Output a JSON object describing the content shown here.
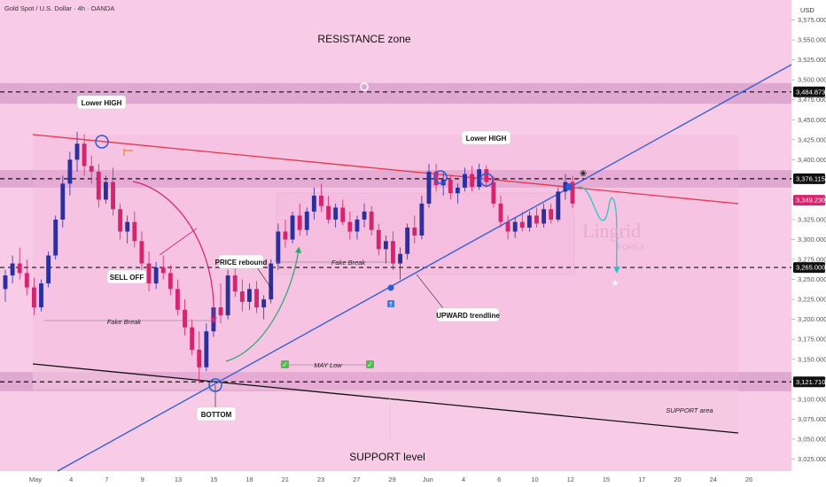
{
  "header": {
    "symbol_title": "Gold Spot / U.S. Dollar · 4h · OANDA",
    "currency": "USD"
  },
  "colors": {
    "bull": "#2b2fa0",
    "bear": "#d6246e",
    "trendline": "#2a5bd7",
    "resistance_line": "#e8354a",
    "support_line": "#111111",
    "zone": "#c98bc0",
    "arrow_sell": "#d6246e",
    "arrow_rebound": "#27a86a",
    "arrow_projection": "#2fc4c4"
  },
  "chart_data": {
    "type": "candlestick",
    "title": "",
    "y_axis": {
      "min": 3010,
      "max": 3600,
      "ticks": [
        3575,
        3550,
        3525,
        3500,
        3475,
        3450,
        3425,
        3400,
        3375,
        3350,
        3325,
        3300,
        3275,
        3250,
        3225,
        3200,
        3175,
        3150,
        3125,
        3100,
        3075,
        3050,
        3025
      ],
      "tick_labels": [
        "3,575.000",
        "3,550.000",
        "3,525.000",
        "3,500.000",
        "3,475.000",
        "3,450.000",
        "3,425.000",
        "3,400.000",
        "3,375.000",
        "3,350.000",
        "3,325.000",
        "3,300.000",
        "3,275.000",
        "3,250.000",
        "3,225.000",
        "3,200.000",
        "3,175.000",
        "3,150.000",
        "3,125.000",
        "3,100.000",
        "3,075.000",
        "3,050.000",
        "3,025.000"
      ],
      "position": "right"
    },
    "x_axis": {
      "labels": [
        "May",
        "4",
        "7",
        "9",
        "13",
        "15",
        "18",
        "21",
        "23",
        "27",
        "29",
        "Jun",
        "4",
        "6",
        "10",
        "12",
        "15",
        "17",
        "20",
        "24",
        "26"
      ]
    },
    "price_tags": [
      {
        "value": 3484.873,
        "label": "3,484.873",
        "color": "#111111"
      },
      {
        "value": 3376.115,
        "label": "3,376.115",
        "color": "#111111"
      },
      {
        "value": 3349.23,
        "label": "3,349.230",
        "color": "#d6246e"
      },
      {
        "value": 3265.0,
        "label": "3,265.000",
        "color": "#111111"
      },
      {
        "value": 3121.71,
        "label": "3,121.710",
        "color": "#111111"
      }
    ],
    "horizontal_levels": [
      3484.873,
      3376.115,
      3265.0,
      3121.71
    ],
    "zones": [
      {
        "name": "resistance-band",
        "from": 3470,
        "to": 3496
      },
      {
        "name": "mid-band",
        "from": 3365,
        "to": 3387
      },
      {
        "name": "support-band",
        "from": 3110,
        "to": 3134
      }
    ],
    "candles": [
      {
        "o": 3238,
        "h": 3262,
        "l": 3222,
        "c": 3255
      },
      {
        "o": 3255,
        "h": 3280,
        "l": 3245,
        "c": 3270
      },
      {
        "o": 3270,
        "h": 3290,
        "l": 3250,
        "c": 3258
      },
      {
        "o": 3258,
        "h": 3275,
        "l": 3230,
        "c": 3240
      },
      {
        "o": 3240,
        "h": 3252,
        "l": 3205,
        "c": 3215
      },
      {
        "o": 3215,
        "h": 3250,
        "l": 3210,
        "c": 3245
      },
      {
        "o": 3245,
        "h": 3285,
        "l": 3240,
        "c": 3280
      },
      {
        "o": 3280,
        "h": 3330,
        "l": 3275,
        "c": 3325
      },
      {
        "o": 3325,
        "h": 3380,
        "l": 3315,
        "c": 3370
      },
      {
        "o": 3370,
        "h": 3410,
        "l": 3355,
        "c": 3400
      },
      {
        "o": 3400,
        "h": 3435,
        "l": 3385,
        "c": 3420
      },
      {
        "o": 3420,
        "h": 3432,
        "l": 3380,
        "c": 3392
      },
      {
        "o": 3392,
        "h": 3405,
        "l": 3370,
        "c": 3385
      },
      {
        "o": 3385,
        "h": 3395,
        "l": 3340,
        "c": 3350
      },
      {
        "o": 3350,
        "h": 3380,
        "l": 3345,
        "c": 3372
      },
      {
        "o": 3372,
        "h": 3390,
        "l": 3330,
        "c": 3338
      },
      {
        "o": 3338,
        "h": 3345,
        "l": 3300,
        "c": 3310
      },
      {
        "o": 3310,
        "h": 3330,
        "l": 3295,
        "c": 3322
      },
      {
        "o": 3322,
        "h": 3335,
        "l": 3290,
        "c": 3298
      },
      {
        "o": 3298,
        "h": 3310,
        "l": 3262,
        "c": 3270
      },
      {
        "o": 3270,
        "h": 3285,
        "l": 3235,
        "c": 3245
      },
      {
        "o": 3245,
        "h": 3272,
        "l": 3238,
        "c": 3265
      },
      {
        "o": 3265,
        "h": 3280,
        "l": 3250,
        "c": 3258
      },
      {
        "o": 3258,
        "h": 3268,
        "l": 3230,
        "c": 3238
      },
      {
        "o": 3238,
        "h": 3250,
        "l": 3205,
        "c": 3212
      },
      {
        "o": 3212,
        "h": 3225,
        "l": 3180,
        "c": 3190
      },
      {
        "o": 3190,
        "h": 3200,
        "l": 3155,
        "c": 3162
      },
      {
        "o": 3162,
        "h": 3185,
        "l": 3120,
        "c": 3140
      },
      {
        "o": 3140,
        "h": 3195,
        "l": 3135,
        "c": 3185
      },
      {
        "o": 3185,
        "h": 3225,
        "l": 3178,
        "c": 3215
      },
      {
        "o": 3215,
        "h": 3245,
        "l": 3195,
        "c": 3205
      },
      {
        "o": 3205,
        "h": 3262,
        "l": 3200,
        "c": 3255
      },
      {
        "o": 3255,
        "h": 3265,
        "l": 3228,
        "c": 3235
      },
      {
        "o": 3235,
        "h": 3250,
        "l": 3210,
        "c": 3222
      },
      {
        "o": 3222,
        "h": 3245,
        "l": 3212,
        "c": 3238
      },
      {
        "o": 3238,
        "h": 3248,
        "l": 3208,
        "c": 3215
      },
      {
        "o": 3215,
        "h": 3230,
        "l": 3200,
        "c": 3225
      },
      {
        "o": 3225,
        "h": 3275,
        "l": 3220,
        "c": 3270
      },
      {
        "o": 3270,
        "h": 3320,
        "l": 3262,
        "c": 3310
      },
      {
        "o": 3310,
        "h": 3325,
        "l": 3290,
        "c": 3300
      },
      {
        "o": 3300,
        "h": 3335,
        "l": 3295,
        "c": 3330
      },
      {
        "o": 3330,
        "h": 3345,
        "l": 3305,
        "c": 3312
      },
      {
        "o": 3312,
        "h": 3340,
        "l": 3305,
        "c": 3335
      },
      {
        "o": 3335,
        "h": 3365,
        "l": 3325,
        "c": 3355
      },
      {
        "o": 3355,
        "h": 3370,
        "l": 3335,
        "c": 3342
      },
      {
        "o": 3342,
        "h": 3355,
        "l": 3320,
        "c": 3325
      },
      {
        "o": 3325,
        "h": 3345,
        "l": 3315,
        "c": 3340
      },
      {
        "o": 3340,
        "h": 3350,
        "l": 3318,
        "c": 3322
      },
      {
        "o": 3322,
        "h": 3335,
        "l": 3300,
        "c": 3310
      },
      {
        "o": 3310,
        "h": 3330,
        "l": 3300,
        "c": 3325
      },
      {
        "o": 3325,
        "h": 3345,
        "l": 3315,
        "c": 3335
      },
      {
        "o": 3335,
        "h": 3342,
        "l": 3305,
        "c": 3312
      },
      {
        "o": 3312,
        "h": 3320,
        "l": 3280,
        "c": 3288
      },
      {
        "o": 3288,
        "h": 3305,
        "l": 3270,
        "c": 3298
      },
      {
        "o": 3298,
        "h": 3310,
        "l": 3262,
        "c": 3270
      },
      {
        "o": 3270,
        "h": 3290,
        "l": 3250,
        "c": 3282
      },
      {
        "o": 3282,
        "h": 3320,
        "l": 3275,
        "c": 3315
      },
      {
        "o": 3315,
        "h": 3330,
        "l": 3295,
        "c": 3305
      },
      {
        "o": 3305,
        "h": 3355,
        "l": 3300,
        "c": 3345
      },
      {
        "o": 3345,
        "h": 3395,
        "l": 3340,
        "c": 3385
      },
      {
        "o": 3385,
        "h": 3395,
        "l": 3360,
        "c": 3368
      },
      {
        "o": 3368,
        "h": 3385,
        "l": 3355,
        "c": 3375
      },
      {
        "o": 3375,
        "h": 3380,
        "l": 3350,
        "c": 3358
      },
      {
        "o": 3358,
        "h": 3370,
        "l": 3345,
        "c": 3365
      },
      {
        "o": 3365,
        "h": 3390,
        "l": 3360,
        "c": 3382
      },
      {
        "o": 3382,
        "h": 3392,
        "l": 3360,
        "c": 3366
      },
      {
        "o": 3366,
        "h": 3395,
        "l": 3362,
        "c": 3388
      },
      {
        "o": 3388,
        "h": 3393,
        "l": 3365,
        "c": 3372
      },
      {
        "o": 3372,
        "h": 3380,
        "l": 3340,
        "c": 3345
      },
      {
        "o": 3345,
        "h": 3355,
        "l": 3315,
        "c": 3322
      },
      {
        "o": 3322,
        "h": 3330,
        "l": 3300,
        "c": 3310
      },
      {
        "o": 3310,
        "h": 3328,
        "l": 3302,
        "c": 3322
      },
      {
        "o": 3322,
        "h": 3335,
        "l": 3310,
        "c": 3315
      },
      {
        "o": 3315,
        "h": 3335,
        "l": 3310,
        "c": 3330
      },
      {
        "o": 3330,
        "h": 3340,
        "l": 3315,
        "c": 3320
      },
      {
        "o": 3320,
        "h": 3345,
        "l": 3315,
        "c": 3338
      },
      {
        "o": 3338,
        "h": 3345,
        "l": 3320,
        "c": 3325
      },
      {
        "o": 3325,
        "h": 3365,
        "l": 3322,
        "c": 3360
      },
      {
        "o": 3360,
        "h": 3382,
        "l": 3350,
        "c": 3372
      },
      {
        "o": 3372,
        "h": 3380,
        "l": 3340,
        "c": 3345
      }
    ],
    "annotations": [
      "RESISTANCE zone",
      "Lower HIGH",
      "Lower HIGH",
      "SELL OFF",
      "PRICE rebound",
      "Fake Break",
      "Fake Break",
      "MAY Low",
      "UPWARD trendline",
      "BOTTOM",
      "SUPPORT area",
      "SUPPORT level"
    ]
  },
  "labels": {
    "resistance_zone": "RESISTANCE zone",
    "lower_high_left": "Lower HIGH",
    "lower_high_right": "Lower HIGH",
    "sell_off": "SELL OFF",
    "price_rebound": "PRICE rebound",
    "fake_break_left": "Fake Break",
    "fake_break_mid": "Fake Break",
    "may_low": "MAY Low",
    "upward_trendline": "UPWARD trendline",
    "bottom": "BOTTOM",
    "support_area": "SUPPORT area",
    "support_level": "SUPPORT level"
  },
  "watermark": {
    "brand": "Lingrid",
    "sub": "FOREX"
  }
}
